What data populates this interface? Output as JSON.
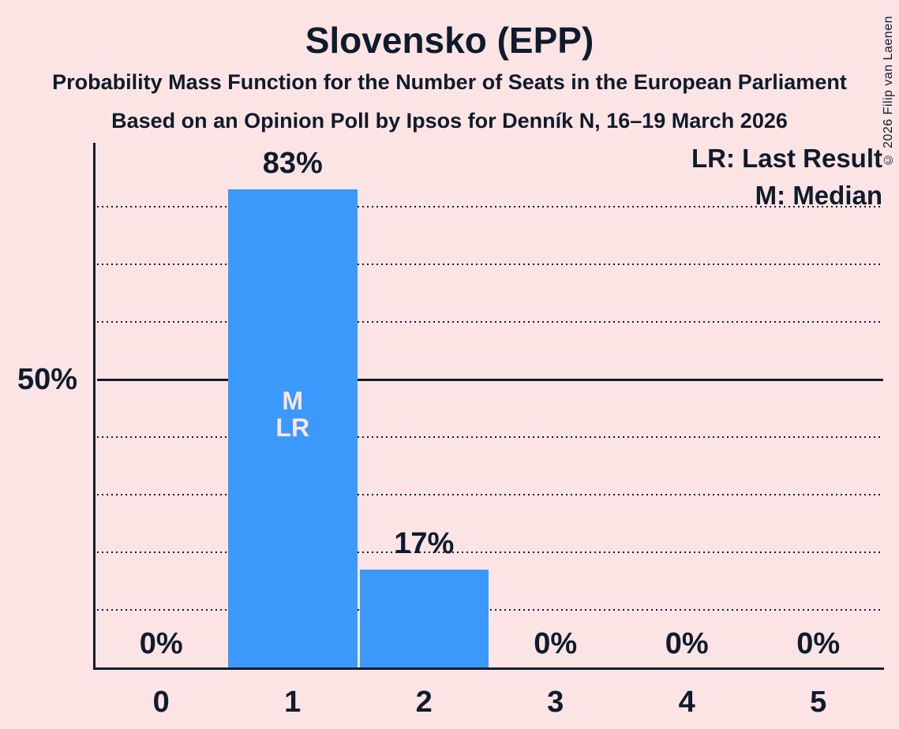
{
  "header": {
    "title": "Slovensko (EPP)",
    "subtitle1": "Probability Mass Function for the Number of Seats in the European Parliament",
    "subtitle2": "Based on an Opinion Poll by Ipsos for Denník N, 16–19 March 2026"
  },
  "copyright": "© 2026 Filip van Laenen",
  "legend": {
    "lr_label": "LR: Last Result",
    "m_label": "M: Median"
  },
  "y_axis": {
    "solid_line_label": "50%"
  },
  "colors": {
    "background": "#fde4e4",
    "ink": "#0f1b2d",
    "bar": "#3b99fc",
    "bar_annotation_text": "#fde4e4"
  },
  "chart_data": {
    "type": "bar",
    "title": "Slovensko (EPP)",
    "subtitle": "Probability Mass Function for the Number of Seats in the European Parliament",
    "source_line": "Based on an Opinion Poll by Ipsos for Denník N, 16–19 March 2026",
    "categories": [
      "0",
      "1",
      "2",
      "3",
      "4",
      "5"
    ],
    "values": [
      0,
      83,
      17,
      0,
      0,
      0
    ],
    "value_labels": [
      "0%",
      "83%",
      "17%",
      "0%",
      "0%",
      "0%"
    ],
    "xlabel": "",
    "ylabel": "",
    "ylim": [
      0,
      91
    ],
    "gridlines_pct": [
      10,
      20,
      30,
      40,
      50,
      60,
      70,
      80
    ],
    "solid_gridline_pct": 50,
    "solid_gridline_label": "50%",
    "grid_style": "horizontal dotted, solid at 50%",
    "legend_position": "top-right",
    "legend_entries": [
      "LR: Last Result",
      "M: Median"
    ],
    "annotations": [
      {
        "category": "1",
        "lines": [
          "M",
          "LR"
        ]
      }
    ],
    "median_category": "1",
    "last_result_category": "1"
  }
}
